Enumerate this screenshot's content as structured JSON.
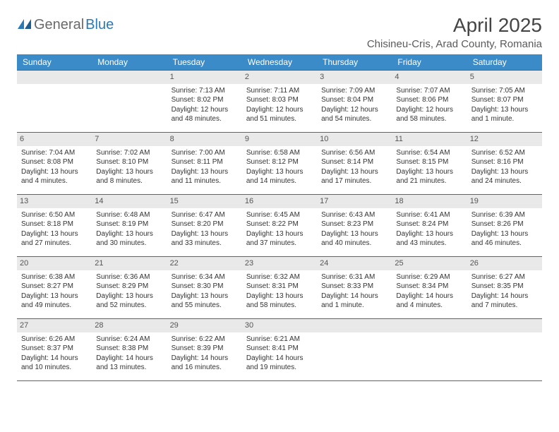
{
  "logo": {
    "text_gray": "General",
    "text_blue": "Blue",
    "icon_color": "#2a7ab8"
  },
  "title": "April 2025",
  "location": "Chisineu-Cris, Arad County, Romania",
  "colors": {
    "header_bg": "#3b8bc8",
    "header_text": "#ffffff",
    "border": "#2f6fa3",
    "daynum_bg": "#e9e9e9",
    "logo_gray": "#6a6a6a",
    "logo_blue": "#2a7ab8"
  },
  "day_headers": [
    "Sunday",
    "Monday",
    "Tuesday",
    "Wednesday",
    "Thursday",
    "Friday",
    "Saturday"
  ],
  "weeks": [
    [
      null,
      null,
      {
        "n": "1",
        "sr": "Sunrise: 7:13 AM",
        "ss": "Sunset: 8:02 PM",
        "dl": "Daylight: 12 hours and 48 minutes."
      },
      {
        "n": "2",
        "sr": "Sunrise: 7:11 AM",
        "ss": "Sunset: 8:03 PM",
        "dl": "Daylight: 12 hours and 51 minutes."
      },
      {
        "n": "3",
        "sr": "Sunrise: 7:09 AM",
        "ss": "Sunset: 8:04 PM",
        "dl": "Daylight: 12 hours and 54 minutes."
      },
      {
        "n": "4",
        "sr": "Sunrise: 7:07 AM",
        "ss": "Sunset: 8:06 PM",
        "dl": "Daylight: 12 hours and 58 minutes."
      },
      {
        "n": "5",
        "sr": "Sunrise: 7:05 AM",
        "ss": "Sunset: 8:07 PM",
        "dl": "Daylight: 13 hours and 1 minute."
      }
    ],
    [
      {
        "n": "6",
        "sr": "Sunrise: 7:04 AM",
        "ss": "Sunset: 8:08 PM",
        "dl": "Daylight: 13 hours and 4 minutes."
      },
      {
        "n": "7",
        "sr": "Sunrise: 7:02 AM",
        "ss": "Sunset: 8:10 PM",
        "dl": "Daylight: 13 hours and 8 minutes."
      },
      {
        "n": "8",
        "sr": "Sunrise: 7:00 AM",
        "ss": "Sunset: 8:11 PM",
        "dl": "Daylight: 13 hours and 11 minutes."
      },
      {
        "n": "9",
        "sr": "Sunrise: 6:58 AM",
        "ss": "Sunset: 8:12 PM",
        "dl": "Daylight: 13 hours and 14 minutes."
      },
      {
        "n": "10",
        "sr": "Sunrise: 6:56 AM",
        "ss": "Sunset: 8:14 PM",
        "dl": "Daylight: 13 hours and 17 minutes."
      },
      {
        "n": "11",
        "sr": "Sunrise: 6:54 AM",
        "ss": "Sunset: 8:15 PM",
        "dl": "Daylight: 13 hours and 21 minutes."
      },
      {
        "n": "12",
        "sr": "Sunrise: 6:52 AM",
        "ss": "Sunset: 8:16 PM",
        "dl": "Daylight: 13 hours and 24 minutes."
      }
    ],
    [
      {
        "n": "13",
        "sr": "Sunrise: 6:50 AM",
        "ss": "Sunset: 8:18 PM",
        "dl": "Daylight: 13 hours and 27 minutes."
      },
      {
        "n": "14",
        "sr": "Sunrise: 6:48 AM",
        "ss": "Sunset: 8:19 PM",
        "dl": "Daylight: 13 hours and 30 minutes."
      },
      {
        "n": "15",
        "sr": "Sunrise: 6:47 AM",
        "ss": "Sunset: 8:20 PM",
        "dl": "Daylight: 13 hours and 33 minutes."
      },
      {
        "n": "16",
        "sr": "Sunrise: 6:45 AM",
        "ss": "Sunset: 8:22 PM",
        "dl": "Daylight: 13 hours and 37 minutes."
      },
      {
        "n": "17",
        "sr": "Sunrise: 6:43 AM",
        "ss": "Sunset: 8:23 PM",
        "dl": "Daylight: 13 hours and 40 minutes."
      },
      {
        "n": "18",
        "sr": "Sunrise: 6:41 AM",
        "ss": "Sunset: 8:24 PM",
        "dl": "Daylight: 13 hours and 43 minutes."
      },
      {
        "n": "19",
        "sr": "Sunrise: 6:39 AM",
        "ss": "Sunset: 8:26 PM",
        "dl": "Daylight: 13 hours and 46 minutes."
      }
    ],
    [
      {
        "n": "20",
        "sr": "Sunrise: 6:38 AM",
        "ss": "Sunset: 8:27 PM",
        "dl": "Daylight: 13 hours and 49 minutes."
      },
      {
        "n": "21",
        "sr": "Sunrise: 6:36 AM",
        "ss": "Sunset: 8:29 PM",
        "dl": "Daylight: 13 hours and 52 minutes."
      },
      {
        "n": "22",
        "sr": "Sunrise: 6:34 AM",
        "ss": "Sunset: 8:30 PM",
        "dl": "Daylight: 13 hours and 55 minutes."
      },
      {
        "n": "23",
        "sr": "Sunrise: 6:32 AM",
        "ss": "Sunset: 8:31 PM",
        "dl": "Daylight: 13 hours and 58 minutes."
      },
      {
        "n": "24",
        "sr": "Sunrise: 6:31 AM",
        "ss": "Sunset: 8:33 PM",
        "dl": "Daylight: 14 hours and 1 minute."
      },
      {
        "n": "25",
        "sr": "Sunrise: 6:29 AM",
        "ss": "Sunset: 8:34 PM",
        "dl": "Daylight: 14 hours and 4 minutes."
      },
      {
        "n": "26",
        "sr": "Sunrise: 6:27 AM",
        "ss": "Sunset: 8:35 PM",
        "dl": "Daylight: 14 hours and 7 minutes."
      }
    ],
    [
      {
        "n": "27",
        "sr": "Sunrise: 6:26 AM",
        "ss": "Sunset: 8:37 PM",
        "dl": "Daylight: 14 hours and 10 minutes."
      },
      {
        "n": "28",
        "sr": "Sunrise: 6:24 AM",
        "ss": "Sunset: 8:38 PM",
        "dl": "Daylight: 14 hours and 13 minutes."
      },
      {
        "n": "29",
        "sr": "Sunrise: 6:22 AM",
        "ss": "Sunset: 8:39 PM",
        "dl": "Daylight: 14 hours and 16 minutes."
      },
      {
        "n": "30",
        "sr": "Sunrise: 6:21 AM",
        "ss": "Sunset: 8:41 PM",
        "dl": "Daylight: 14 hours and 19 minutes."
      },
      null,
      null,
      null
    ]
  ]
}
